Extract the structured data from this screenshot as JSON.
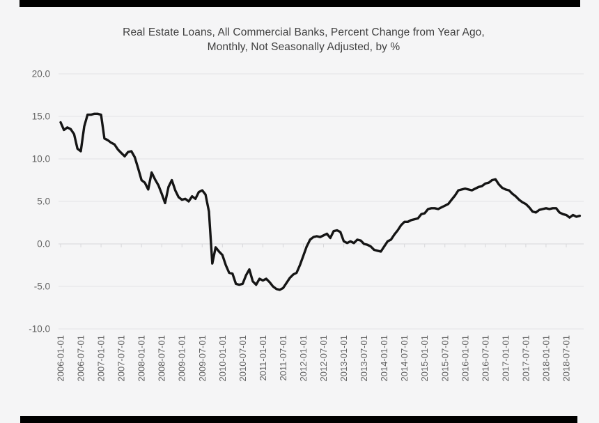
{
  "page": {
    "background_color": "#f5f5f6",
    "letterbox_color": "#000000"
  },
  "chart_data": {
    "type": "line",
    "title_line1": "Real Estate Loans, All Commercial Banks, Percent Change from Year Ago,",
    "title_line2": "Monthly, Not Seasonally Adjusted, by %",
    "grid": true,
    "legend": false,
    "line_color": "#151515",
    "y_axis": {
      "tick_labels": [
        "20.0",
        "15.0",
        "10.0",
        "5.0",
        "0.0",
        "-5.0",
        "-10.0"
      ],
      "ticks": [
        20,
        15,
        10,
        5,
        0,
        -5,
        -10
      ],
      "range": [
        -10,
        20
      ]
    },
    "x_axis": {
      "label_rotation_deg": 90,
      "tick_labels": [
        "2006-01-01",
        "2006-07-01",
        "2007-01-01",
        "2007-07-01",
        "2008-01-01",
        "2008-07-01",
        "2009-01-01",
        "2009-07-01",
        "2010-01-01",
        "2010-07-01",
        "2011-01-01",
        "2011-07-01",
        "2012-01-01",
        "2012-07-01",
        "2013-01-01",
        "2013-07-01",
        "2014-01-01",
        "2014-07-01",
        "2015-01-01",
        "2015-07-01",
        "2016-01-01",
        "2016-07-01",
        "2017-01-01",
        "2017-07-01",
        "2018-01-01",
        "2018-07-01"
      ]
    },
    "series": [
      {
        "start_label": "2006-01-01",
        "frequency": "monthly",
        "values": [
          14.3,
          13.4,
          13.7,
          13.5,
          12.9,
          11.2,
          10.9,
          13.8,
          15.2,
          15.2,
          15.3,
          15.3,
          15.2,
          12.4,
          12.2,
          11.9,
          11.7,
          11.1,
          10.7,
          10.3,
          10.8,
          10.9,
          10.2,
          8.9,
          7.5,
          7.2,
          6.4,
          8.4,
          7.6,
          6.9,
          5.9,
          4.8,
          6.7,
          7.5,
          6.3,
          5.5,
          5.2,
          5.3,
          5.0,
          5.6,
          5.3,
          6.1,
          6.3,
          5.8,
          3.8,
          -2.3,
          -0.4,
          -0.9,
          -1.3,
          -2.5,
          -3.4,
          -3.5,
          -4.7,
          -4.8,
          -4.7,
          -3.7,
          -3.0,
          -4.4,
          -4.8,
          -4.1,
          -4.3,
          -4.1,
          -4.5,
          -5.0,
          -5.3,
          -5.4,
          -5.2,
          -4.6,
          -4.0,
          -3.6,
          -3.4,
          -2.5,
          -1.4,
          -0.3,
          0.5,
          0.8,
          0.9,
          0.8,
          1.0,
          1.2,
          0.7,
          1.5,
          1.6,
          1.4,
          0.3,
          0.1,
          0.3,
          0.1,
          0.5,
          0.4,
          0.0,
          -0.1,
          -0.3,
          -0.7,
          -0.8,
          -0.9,
          -0.3,
          0.3,
          0.5,
          1.1,
          1.6,
          2.2,
          2.6,
          2.6,
          2.8,
          2.9,
          3.0,
          3.5,
          3.6,
          4.1,
          4.2,
          4.2,
          4.1,
          4.3,
          4.5,
          4.7,
          5.2,
          5.7,
          6.3,
          6.4,
          6.5,
          6.4,
          6.3,
          6.5,
          6.7,
          6.8,
          7.1,
          7.2,
          7.5,
          7.6,
          7.0,
          6.6,
          6.4,
          6.3,
          5.9,
          5.6,
          5.2,
          4.9,
          4.7,
          4.3,
          3.8,
          3.7,
          4.0,
          4.1,
          4.2,
          4.1,
          4.2,
          4.2,
          3.7,
          3.5,
          3.4,
          3.1,
          3.4,
          3.2,
          3.3
        ]
      }
    ]
  }
}
